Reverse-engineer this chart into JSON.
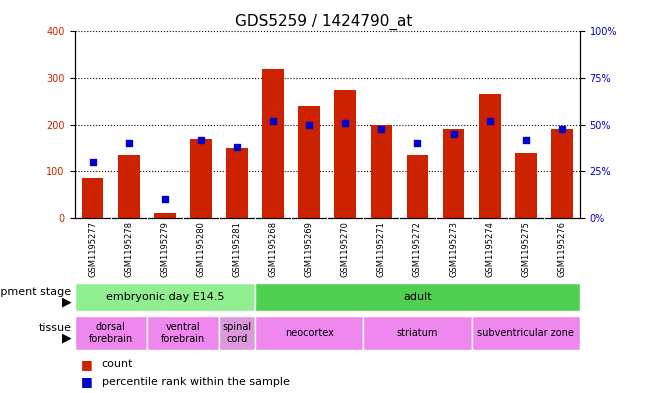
{
  "title": "GDS5259 / 1424790_at",
  "samples": [
    "GSM1195277",
    "GSM1195278",
    "GSM1195279",
    "GSM1195280",
    "GSM1195281",
    "GSM1195268",
    "GSM1195269",
    "GSM1195270",
    "GSM1195271",
    "GSM1195272",
    "GSM1195273",
    "GSM1195274",
    "GSM1195275",
    "GSM1195276"
  ],
  "counts": [
    85,
    135,
    10,
    170,
    150,
    320,
    240,
    275,
    200,
    135,
    190,
    265,
    140,
    190
  ],
  "percentiles": [
    30,
    40,
    10,
    42,
    38,
    52,
    50,
    51,
    48,
    40,
    45,
    52,
    42,
    48
  ],
  "bar_color": "#cc2200",
  "dot_color": "#0000cc",
  "left_ylim": [
    0,
    400
  ],
  "right_ylim": [
    0,
    100
  ],
  "left_yticks": [
    0,
    100,
    200,
    300,
    400
  ],
  "right_yticks": [
    0,
    25,
    50,
    75,
    100
  ],
  "right_yticklabels": [
    "0%",
    "25%",
    "50%",
    "75%",
    "100%"
  ],
  "dev_stages": [
    {
      "label": "embryonic day E14.5",
      "start": 0,
      "end": 5,
      "color": "#90ee90"
    },
    {
      "label": "adult",
      "start": 5,
      "end": 14,
      "color": "#50d050"
    }
  ],
  "tissues": [
    {
      "label": "dorsal\nforebrain",
      "start": 0,
      "end": 2,
      "color": "#ee88ee"
    },
    {
      "label": "ventral\nforebrain",
      "start": 2,
      "end": 4,
      "color": "#ee88ee"
    },
    {
      "label": "spinal\ncord",
      "start": 4,
      "end": 5,
      "color": "#dd99dd"
    },
    {
      "label": "neocortex",
      "start": 5,
      "end": 8,
      "color": "#ee88ee"
    },
    {
      "label": "striatum",
      "start": 8,
      "end": 11,
      "color": "#ee88ee"
    },
    {
      "label": "subventricular zone",
      "start": 11,
      "end": 14,
      "color": "#ee88ee"
    }
  ],
  "legend_count_label": "count",
  "legend_pct_label": "percentile rank within the sample",
  "dev_stage_label": "development stage",
  "tissue_label": "tissue",
  "xtick_bg_color": "#c8c8c8",
  "plot_bg_color": "#ffffff",
  "title_fontsize": 11,
  "tick_fontsize": 7,
  "sample_fontsize": 6
}
